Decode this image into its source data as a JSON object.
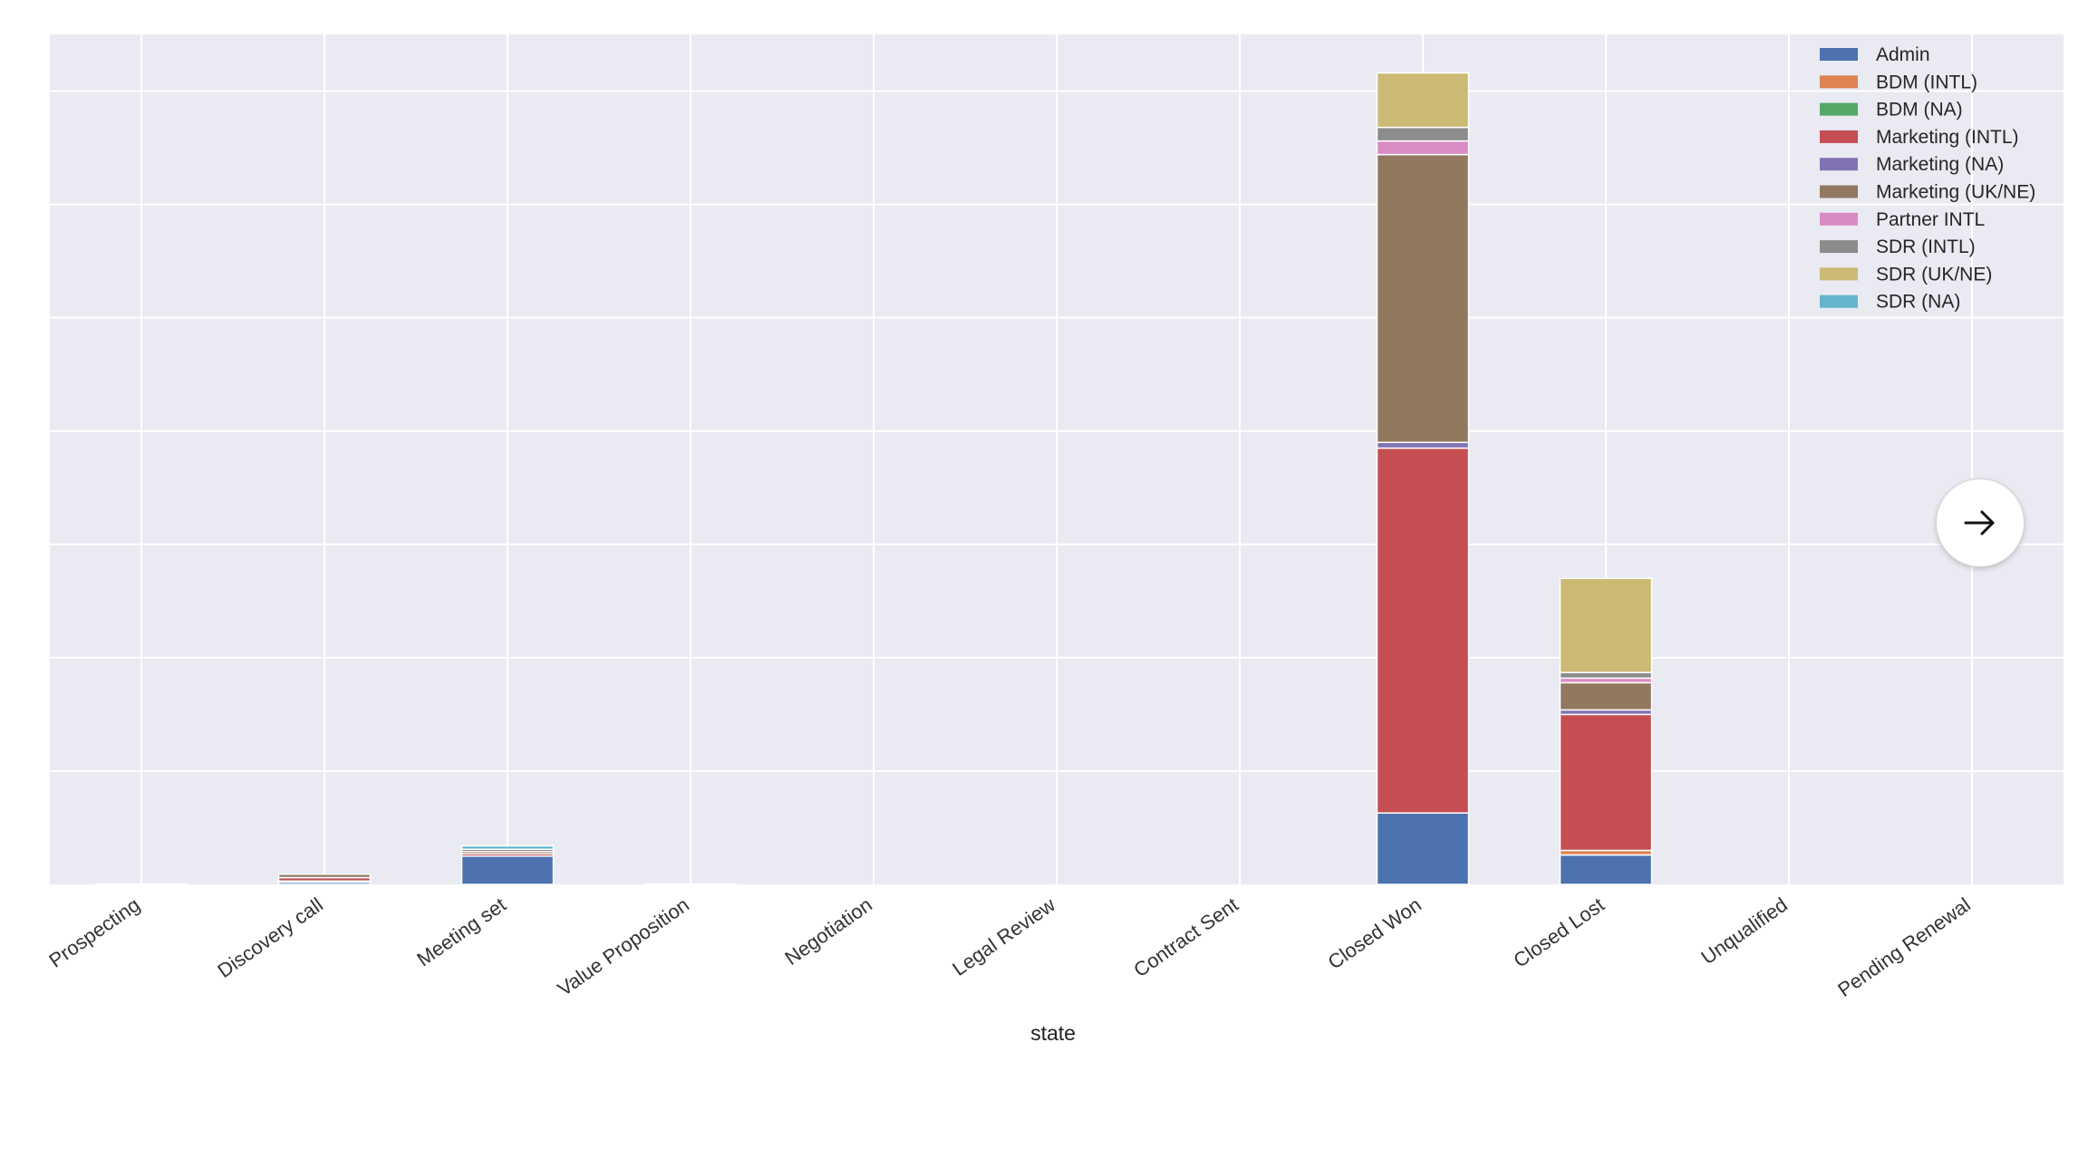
{
  "chart_data": {
    "type": "bar",
    "stacked": true,
    "xlabel": "state",
    "ylabel": "",
    "ylim": [
      0,
      7.5
    ],
    "grid": true,
    "legend_position": "top-right",
    "categories": [
      "Prospecting",
      "Discovery call",
      "Meeting set",
      "Value Proposition",
      "Negotiation",
      "Legal Review",
      "Contract Sent",
      "Closed Won",
      "Closed Lost",
      "Unqualified",
      "Pending Renewal"
    ],
    "series": [
      {
        "name": "Admin",
        "color": "#4c72b0",
        "values": [
          0.005,
          0.02,
          0.25,
          0.005,
          0,
          0,
          0,
          0.63,
          0.26,
          0,
          0
        ]
      },
      {
        "name": "BDM (INTL)",
        "color": "#dd8452",
        "values": [
          0,
          0.01,
          0,
          0,
          0,
          0,
          0,
          0,
          0.04,
          0,
          0
        ]
      },
      {
        "name": "BDM (NA)",
        "color": "#55a868",
        "values": [
          0,
          0,
          0,
          0,
          0,
          0,
          0,
          0,
          0,
          0,
          0
        ]
      },
      {
        "name": "Marketing (INTL)",
        "color": "#c44e52",
        "values": [
          0,
          0.03,
          0.02,
          0,
          0,
          0,
          0,
          3.22,
          1.2,
          0,
          0
        ]
      },
      {
        "name": "Marketing (NA)",
        "color": "#8172b3",
        "values": [
          0,
          0,
          0,
          0,
          0,
          0,
          0,
          0.05,
          0.04,
          0,
          0
        ]
      },
      {
        "name": "Marketing (UK/NE)",
        "color": "#937860",
        "values": [
          0,
          0.03,
          0.02,
          0,
          0,
          0,
          0,
          2.54,
          0.24,
          0,
          0
        ]
      },
      {
        "name": "Partner INTL",
        "color": "#da8bc3",
        "values": [
          0,
          0,
          0,
          0,
          0,
          0,
          0,
          0.12,
          0.04,
          0,
          0
        ]
      },
      {
        "name": "SDR (INTL)",
        "color": "#8c8c8c",
        "values": [
          0,
          0,
          0.02,
          0,
          0,
          0,
          0,
          0.12,
          0.05,
          0,
          0
        ]
      },
      {
        "name": "SDR (UK/NE)",
        "color": "#ccb974",
        "values": [
          0,
          0,
          0,
          0,
          0,
          0,
          0,
          0.48,
          0.83,
          0,
          0
        ]
      },
      {
        "name": "SDR (NA)",
        "color": "#64b5cd",
        "values": [
          0,
          0,
          0.03,
          0,
          0,
          0,
          0,
          0,
          0,
          0,
          0
        ]
      }
    ]
  },
  "next_button": {
    "icon": "arrow-right-icon"
  }
}
